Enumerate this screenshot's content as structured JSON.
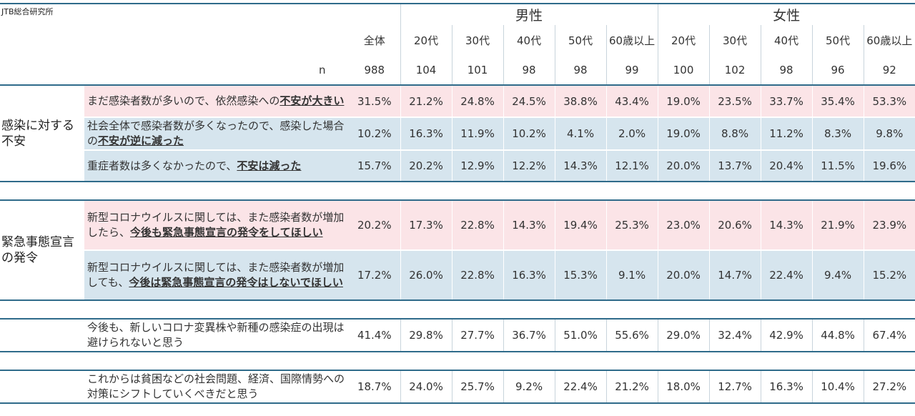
{
  "source_label": "JTB総合研究所",
  "chart_data": {
    "type": "table",
    "groups": [
      {
        "label": "男性",
        "span": 5
      },
      {
        "label": "女性",
        "span": 5
      }
    ],
    "columns": [
      "全体",
      "20代",
      "30代",
      "40代",
      "50代",
      "60歳以上",
      "20代",
      "30代",
      "40代",
      "50代",
      "60歳以上"
    ],
    "n_label": "n",
    "n_values": [
      "988",
      "104",
      "101",
      "98",
      "98",
      "99",
      "100",
      "102",
      "98",
      "96",
      "92"
    ],
    "sections": [
      {
        "category": "感染に対する不安",
        "rows": [
          {
            "text_parts": [
              {
                "t": "まだ感染者数が多いので、依然感染への",
                "u": false
              },
              {
                "t": "不安が大きい",
                "u": true
              }
            ],
            "color": "pink",
            "values": [
              "31.5%",
              "21.2%",
              "24.8%",
              "24.5%",
              "38.8%",
              "43.4%",
              "19.0%",
              "23.5%",
              "33.7%",
              "35.4%",
              "53.3%"
            ]
          },
          {
            "text_parts": [
              {
                "t": "社会全体で感染者数が多くなったので、感染した場合の",
                "u": false
              },
              {
                "t": "不安が逆に減った",
                "u": true
              }
            ],
            "color": "blue",
            "values": [
              "10.2%",
              "16.3%",
              "11.9%",
              "10.2%",
              "4.1%",
              "2.0%",
              "19.0%",
              "8.8%",
              "11.2%",
              "8.3%",
              "9.8%"
            ]
          },
          {
            "text_parts": [
              {
                "t": "重症者数は多くなかったので、",
                "u": false
              },
              {
                "t": "不安は減った",
                "u": true
              }
            ],
            "color": "blue",
            "values": [
              "15.7%",
              "20.2%",
              "12.9%",
              "12.2%",
              "14.3%",
              "12.1%",
              "20.0%",
              "13.7%",
              "20.4%",
              "11.5%",
              "19.6%"
            ]
          }
        ]
      },
      {
        "category": "緊急事態宣言の発令",
        "rows": [
          {
            "text_parts": [
              {
                "t": "新型コロナウイルスに関しては、また感染者数が増加したら、",
                "u": false
              },
              {
                "t": "今後も緊急事態宣言の発令をしてほしい",
                "u": true
              }
            ],
            "color": "pink",
            "values": [
              "20.2%",
              "17.3%",
              "22.8%",
              "14.3%",
              "19.4%",
              "25.3%",
              "23.0%",
              "20.6%",
              "14.3%",
              "21.9%",
              "23.9%"
            ]
          },
          {
            "text_parts": [
              {
                "t": "新型コロナウイルスに関しては、また感染者数が増加しても、",
                "u": false
              },
              {
                "t": "今後は緊急事態宣言の発令はしないでほしい",
                "u": true
              }
            ],
            "color": "blue",
            "values": [
              "17.2%",
              "26.0%",
              "22.8%",
              "16.3%",
              "15.3%",
              "9.1%",
              "20.0%",
              "14.7%",
              "22.4%",
              "9.4%",
              "15.2%"
            ]
          }
        ]
      },
      {
        "category": "",
        "rows": [
          {
            "text_parts": [
              {
                "t": "今後も、新しいコロナ変異株や新種の感染症の出現は避けられないと思う",
                "u": false
              }
            ],
            "color": "none",
            "values": [
              "41.4%",
              "29.8%",
              "27.7%",
              "36.7%",
              "51.0%",
              "55.6%",
              "29.0%",
              "32.4%",
              "42.9%",
              "44.8%",
              "67.4%"
            ]
          }
        ]
      },
      {
        "category": "",
        "rows": [
          {
            "text_parts": [
              {
                "t": "これからは貧困などの社会問題、経済、国際情勢への対策にシフトしていくべきだと思う",
                "u": false
              }
            ],
            "color": "none",
            "values": [
              "18.7%",
              "24.0%",
              "25.7%",
              "9.2%",
              "22.4%",
              "21.2%",
              "18.0%",
              "12.7%",
              "16.3%",
              "10.4%",
              "27.2%"
            ]
          }
        ]
      }
    ]
  }
}
